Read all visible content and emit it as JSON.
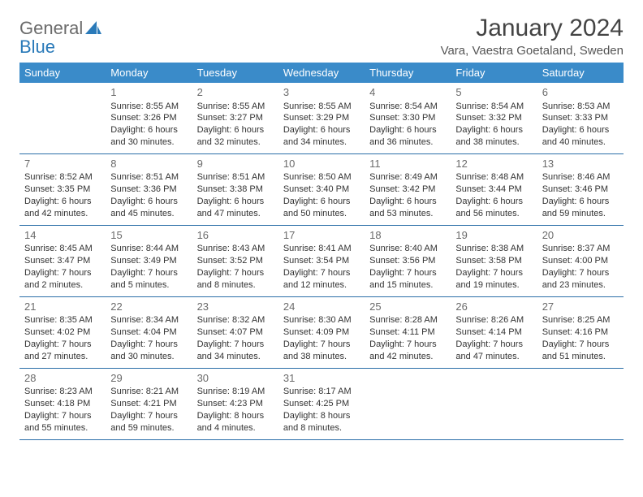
{
  "brand": {
    "part1": "General",
    "part2": "Blue"
  },
  "title": "January 2024",
  "location": "Vara, Vaestra Goetaland, Sweden",
  "colors": {
    "header_bg": "#3a8bc9",
    "header_text": "#ffffff",
    "rule": "#2a6ea8",
    "text": "#333333",
    "daynum": "#6b6b6b",
    "brand_gray": "#6b6b6b",
    "brand_blue": "#2a7ab9",
    "page_bg": "#ffffff"
  },
  "weekdays": [
    "Sunday",
    "Monday",
    "Tuesday",
    "Wednesday",
    "Thursday",
    "Friday",
    "Saturday"
  ],
  "weeks": [
    [
      null,
      {
        "n": "1",
        "sr": "8:55 AM",
        "ss": "3:26 PM",
        "dl": "6 hours and 30 minutes."
      },
      {
        "n": "2",
        "sr": "8:55 AM",
        "ss": "3:27 PM",
        "dl": "6 hours and 32 minutes."
      },
      {
        "n": "3",
        "sr": "8:55 AM",
        "ss": "3:29 PM",
        "dl": "6 hours and 34 minutes."
      },
      {
        "n": "4",
        "sr": "8:54 AM",
        "ss": "3:30 PM",
        "dl": "6 hours and 36 minutes."
      },
      {
        "n": "5",
        "sr": "8:54 AM",
        "ss": "3:32 PM",
        "dl": "6 hours and 38 minutes."
      },
      {
        "n": "6",
        "sr": "8:53 AM",
        "ss": "3:33 PM",
        "dl": "6 hours and 40 minutes."
      }
    ],
    [
      {
        "n": "7",
        "sr": "8:52 AM",
        "ss": "3:35 PM",
        "dl": "6 hours and 42 minutes."
      },
      {
        "n": "8",
        "sr": "8:51 AM",
        "ss": "3:36 PM",
        "dl": "6 hours and 45 minutes."
      },
      {
        "n": "9",
        "sr": "8:51 AM",
        "ss": "3:38 PM",
        "dl": "6 hours and 47 minutes."
      },
      {
        "n": "10",
        "sr": "8:50 AM",
        "ss": "3:40 PM",
        "dl": "6 hours and 50 minutes."
      },
      {
        "n": "11",
        "sr": "8:49 AM",
        "ss": "3:42 PM",
        "dl": "6 hours and 53 minutes."
      },
      {
        "n": "12",
        "sr": "8:48 AM",
        "ss": "3:44 PM",
        "dl": "6 hours and 56 minutes."
      },
      {
        "n": "13",
        "sr": "8:46 AM",
        "ss": "3:46 PM",
        "dl": "6 hours and 59 minutes."
      }
    ],
    [
      {
        "n": "14",
        "sr": "8:45 AM",
        "ss": "3:47 PM",
        "dl": "7 hours and 2 minutes."
      },
      {
        "n": "15",
        "sr": "8:44 AM",
        "ss": "3:49 PM",
        "dl": "7 hours and 5 minutes."
      },
      {
        "n": "16",
        "sr": "8:43 AM",
        "ss": "3:52 PM",
        "dl": "7 hours and 8 minutes."
      },
      {
        "n": "17",
        "sr": "8:41 AM",
        "ss": "3:54 PM",
        "dl": "7 hours and 12 minutes."
      },
      {
        "n": "18",
        "sr": "8:40 AM",
        "ss": "3:56 PM",
        "dl": "7 hours and 15 minutes."
      },
      {
        "n": "19",
        "sr": "8:38 AM",
        "ss": "3:58 PM",
        "dl": "7 hours and 19 minutes."
      },
      {
        "n": "20",
        "sr": "8:37 AM",
        "ss": "4:00 PM",
        "dl": "7 hours and 23 minutes."
      }
    ],
    [
      {
        "n": "21",
        "sr": "8:35 AM",
        "ss": "4:02 PM",
        "dl": "7 hours and 27 minutes."
      },
      {
        "n": "22",
        "sr": "8:34 AM",
        "ss": "4:04 PM",
        "dl": "7 hours and 30 minutes."
      },
      {
        "n": "23",
        "sr": "8:32 AM",
        "ss": "4:07 PM",
        "dl": "7 hours and 34 minutes."
      },
      {
        "n": "24",
        "sr": "8:30 AM",
        "ss": "4:09 PM",
        "dl": "7 hours and 38 minutes."
      },
      {
        "n": "25",
        "sr": "8:28 AM",
        "ss": "4:11 PM",
        "dl": "7 hours and 42 minutes."
      },
      {
        "n": "26",
        "sr": "8:26 AM",
        "ss": "4:14 PM",
        "dl": "7 hours and 47 minutes."
      },
      {
        "n": "27",
        "sr": "8:25 AM",
        "ss": "4:16 PM",
        "dl": "7 hours and 51 minutes."
      }
    ],
    [
      {
        "n": "28",
        "sr": "8:23 AM",
        "ss": "4:18 PM",
        "dl": "7 hours and 55 minutes."
      },
      {
        "n": "29",
        "sr": "8:21 AM",
        "ss": "4:21 PM",
        "dl": "7 hours and 59 minutes."
      },
      {
        "n": "30",
        "sr": "8:19 AM",
        "ss": "4:23 PM",
        "dl": "8 hours and 4 minutes."
      },
      {
        "n": "31",
        "sr": "8:17 AM",
        "ss": "4:25 PM",
        "dl": "8 hours and 8 minutes."
      },
      null,
      null,
      null
    ]
  ],
  "labels": {
    "sunrise": "Sunrise: ",
    "sunset": "Sunset: ",
    "daylight": "Daylight: "
  }
}
